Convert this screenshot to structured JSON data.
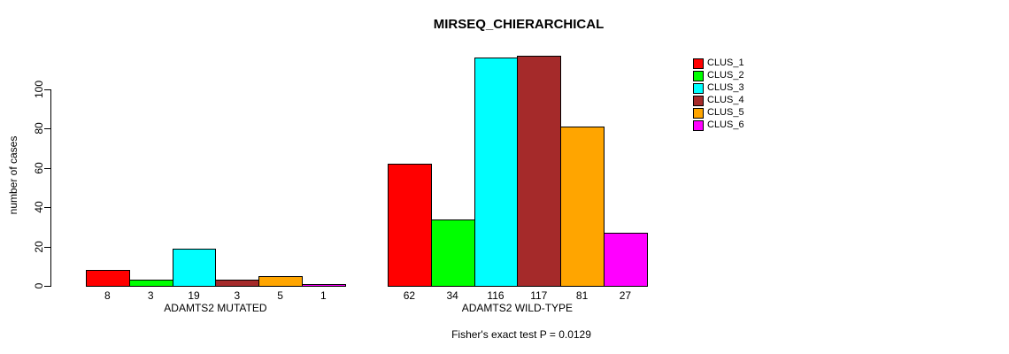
{
  "chart_data": {
    "type": "bar",
    "title": "MIRSEQ_CHIERARCHICAL",
    "ylabel": "number of cases",
    "xlabel": "",
    "yticks": [
      0,
      20,
      40,
      60,
      80,
      100
    ],
    "ylim": [
      0,
      118
    ],
    "grid": false,
    "legend_position": "right",
    "series_names": [
      "CLUS_1",
      "CLUS_2",
      "CLUS_3",
      "CLUS_4",
      "CLUS_5",
      "CLUS_6"
    ],
    "series_colors": [
      "#FF0000",
      "#00FF00",
      "#00FFFF",
      "#A52A2A",
      "#FFA500",
      "#FF00FF"
    ],
    "groups": [
      {
        "label": "ADAMTS2 MUTATED",
        "values": [
          8,
          3,
          19,
          3,
          5,
          1
        ]
      },
      {
        "label": "ADAMTS2 WILD-TYPE",
        "values": [
          62,
          34,
          116,
          117,
          81,
          27
        ]
      }
    ],
    "annotation": "Fisher's exact test P = 0.0129"
  }
}
